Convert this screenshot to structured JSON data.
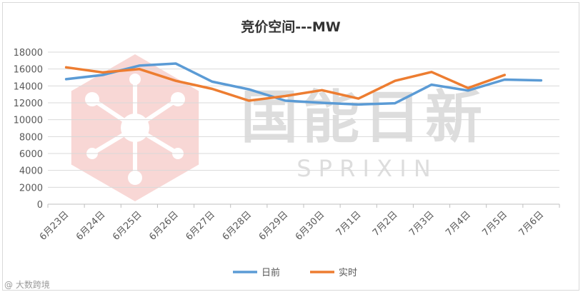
{
  "chart_data": {
    "type": "line",
    "title": "竞价空间---MW",
    "xlabel": "",
    "ylabel": "",
    "categories": [
      "6月23日",
      "6月24日",
      "6月25日",
      "6月26日",
      "6月27日",
      "6月28日",
      "6月29日",
      "6月30日",
      "7月1日",
      "7月2日",
      "7月3日",
      "7月4日",
      "7月5日",
      "7月6日"
    ],
    "ylim": [
      0,
      18000
    ],
    "yticks": [
      0,
      2000,
      4000,
      6000,
      8000,
      10000,
      12000,
      14000,
      16000,
      18000
    ],
    "grid": true,
    "legend_position": "bottom",
    "series": [
      {
        "name": "日前",
        "color": "#5b9bd5",
        "values": [
          14800,
          15300,
          16400,
          16650,
          14500,
          13600,
          12250,
          12000,
          11800,
          11950,
          14150,
          13450,
          14750,
          14650
        ]
      },
      {
        "name": "实时",
        "color": "#ed7d31",
        "values": [
          16200,
          15600,
          16000,
          14600,
          13650,
          12250,
          12800,
          13500,
          12500,
          14600,
          15650,
          13750,
          15300,
          null
        ]
      }
    ]
  },
  "watermark": {
    "logo_text": "国能日新",
    "logo_subtext": "S P R I X I N"
  },
  "corner_mark": "@ 大数跨境"
}
